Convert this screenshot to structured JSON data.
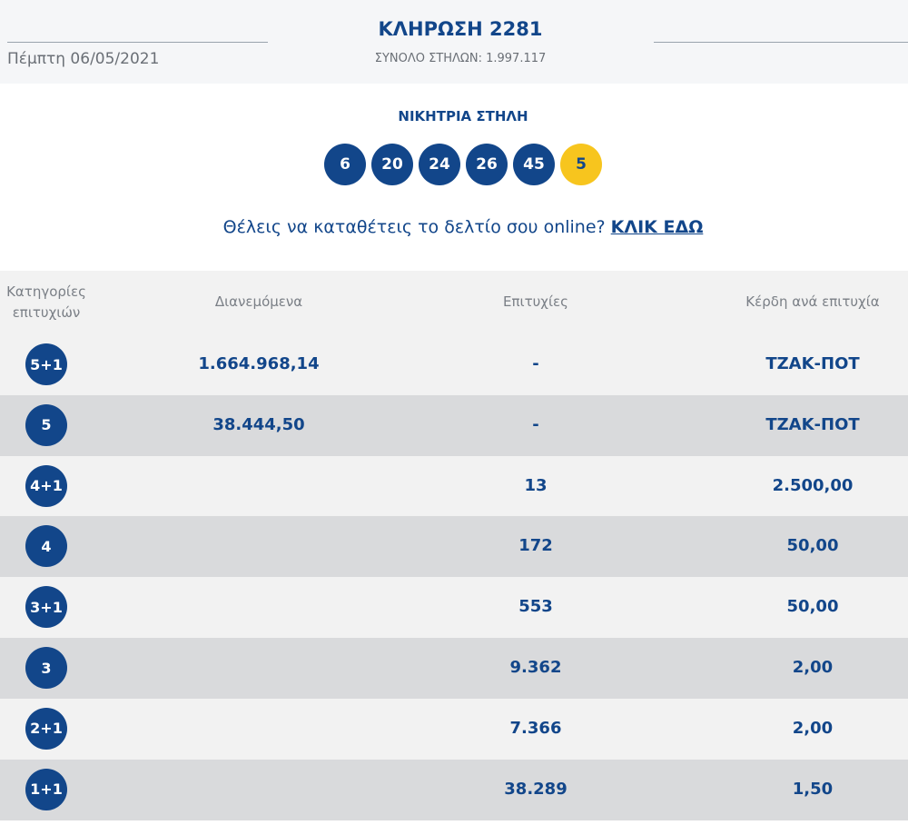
{
  "header": {
    "date": "Πέμπτη 06/05/2021",
    "title": "ΚΛΗΡΩΣΗ 2281",
    "subtitle": "ΣΥΝΟΛΟ ΣΤΗΛΩΝ: 1.997.117"
  },
  "winning": {
    "label": "ΝΙΚΗΤΡΙΑ ΣΤΗΛΗ",
    "numbers": [
      "6",
      "20",
      "24",
      "26",
      "45"
    ],
    "bonus": "5"
  },
  "cta": {
    "text": "Θέλεις να καταθέτεις το δελτίο σου online?",
    "link": "ΚΛΙΚ ΕΔΩ"
  },
  "table": {
    "headers": [
      "Κατηγορίες επιτυχιών",
      "Διανεμόμενα",
      "Επιτυχίες",
      "Κέρδη ανά επιτυχία"
    ],
    "rows": [
      {
        "category": "5+1",
        "distributed": "1.664.968,14",
        "winners": "-",
        "prize": "ΤΖΑΚ-ΠΟΤ"
      },
      {
        "category": "5",
        "distributed": "38.444,50",
        "winners": "-",
        "prize": "ΤΖΑΚ-ΠΟΤ"
      },
      {
        "category": "4+1",
        "winners": "13",
        "prize": "2.500,00"
      },
      {
        "category": "4",
        "winners": "172",
        "prize": "50,00"
      },
      {
        "category": "3+1",
        "winners": "553",
        "prize": "50,00"
      },
      {
        "category": "3",
        "winners": "9.362",
        "prize": "2,00"
      },
      {
        "category": "2+1",
        "winners": "7.366",
        "prize": "2,00"
      },
      {
        "category": "1+1",
        "winners": "38.289",
        "prize": "1,50"
      }
    ]
  }
}
